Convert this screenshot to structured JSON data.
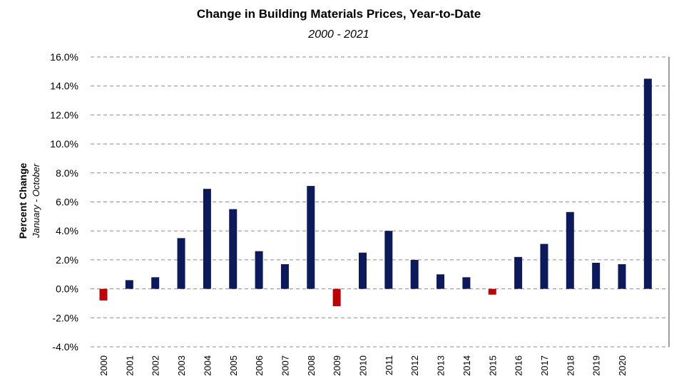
{
  "chart_data": {
    "type": "bar",
    "title": "Change in Building Materials Prices, Year-to-Date",
    "subtitle": "2000 - 2021",
    "ylabel": "Percent Change",
    "ylabel_sub": "January - October",
    "xlabel": "",
    "ylim": [
      -4,
      16
    ],
    "yticks": [
      16,
      14,
      12,
      10,
      8,
      6,
      4,
      2,
      0,
      -2,
      -4
    ],
    "ytick_labels": [
      "16.0%",
      "14.0%",
      "12.0%",
      "10.0%",
      "8.0%",
      "6.0%",
      "4.0%",
      "2.0%",
      "0.0%",
      "-2.0%",
      "-4.0%"
    ],
    "grid": true,
    "categories": [
      "2000",
      "2001",
      "2002",
      "2003",
      "2004",
      "2005",
      "2006",
      "2007",
      "2008",
      "2009",
      "2010",
      "2011",
      "2012",
      "2013",
      "2014",
      "2015",
      "2016",
      "2017",
      "2018",
      "2019",
      "2020",
      ""
    ],
    "values": [
      -0.8,
      0.6,
      0.8,
      3.5,
      6.9,
      5.5,
      2.6,
      1.7,
      7.1,
      -1.2,
      2.5,
      4.0,
      2.0,
      1.0,
      0.8,
      -0.4,
      2.2,
      3.1,
      5.3,
      1.8,
      1.7,
      14.5
    ],
    "colors": {
      "positive": "#0c1a5c",
      "negative": "#c00000"
    }
  }
}
